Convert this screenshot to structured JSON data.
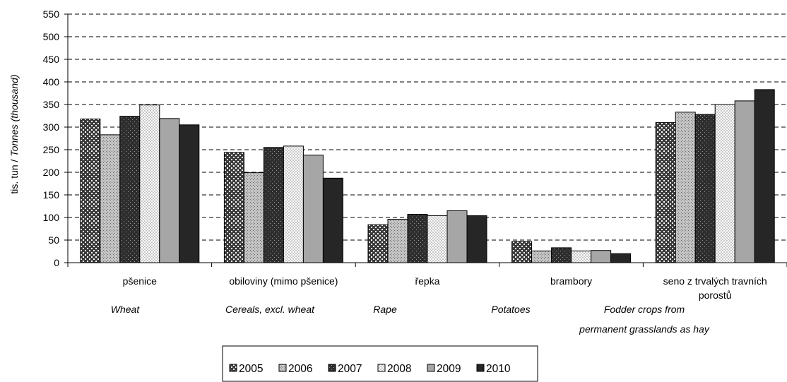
{
  "chart_data": {
    "type": "bar",
    "ylabel_prefix": "tis. tun / ",
    "ylabel_italic": "Tonnes (thousand)",
    "ylim": [
      0,
      550
    ],
    "yticks": [
      0,
      50,
      100,
      150,
      200,
      250,
      300,
      350,
      400,
      450,
      500,
      550
    ],
    "grid": "horizontal dashed",
    "legend_position": "bottom",
    "categories": [
      {
        "label_lines": [
          "pšenice"
        ],
        "english_lines": [
          "Wheat"
        ]
      },
      {
        "label_lines": [
          "obiloviny (mimo pšenice)"
        ],
        "english_lines": [
          "Cereals, excl. wheat"
        ]
      },
      {
        "label_lines": [
          "řepka"
        ],
        "english_lines": [
          "Rape"
        ]
      },
      {
        "label_lines": [
          "brambory"
        ],
        "english_lines": [
          "Potatoes"
        ]
      },
      {
        "label_lines": [
          "seno z trvalých travních",
          "porostů"
        ],
        "english_lines": [
          "Fodder crops from",
          "permanent grasslands as hay"
        ]
      }
    ],
    "series": [
      {
        "name": "2005",
        "pattern": "dots-dark",
        "values": [
          318,
          244,
          84,
          47,
          310
        ]
      },
      {
        "name": "2006",
        "pattern": "dots-light",
        "values": [
          283,
          199,
          96,
          26,
          333
        ]
      },
      {
        "name": "2007",
        "pattern": "dots-on-dark",
        "values": [
          324,
          255,
          107,
          33,
          328
        ]
      },
      {
        "name": "2008",
        "pattern": "checker-light",
        "values": [
          349,
          258,
          104,
          26,
          350
        ]
      },
      {
        "name": "2009",
        "pattern": "solid-gray",
        "values": [
          319,
          238,
          115,
          27,
          358
        ]
      },
      {
        "name": "2010",
        "pattern": "solid-dark",
        "values": [
          305,
          187,
          104,
          20,
          383
        ]
      }
    ]
  }
}
